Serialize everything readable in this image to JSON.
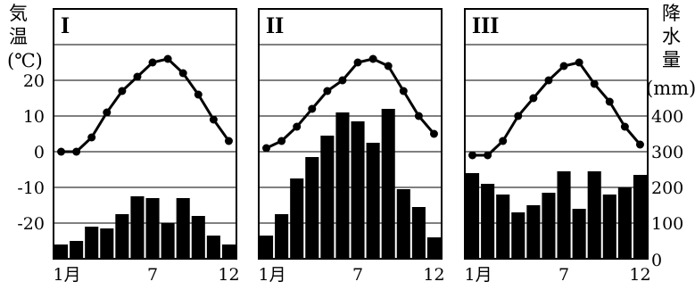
{
  "left_axis": {
    "title": [
      "気",
      "温",
      "(℃)"
    ],
    "ticks": [
      "20",
      "10",
      "0",
      "-10",
      "-20"
    ]
  },
  "right_axis": {
    "title": [
      "降",
      "水",
      "量",
      "(mm)"
    ],
    "ticks": [
      "400",
      "300",
      "200",
      "100",
      "0"
    ]
  },
  "x_ticks": [
    "1月",
    "7",
    "12"
  ],
  "chart_data": [
    {
      "type": "bar+line",
      "panel_label": "I",
      "months": [
        1,
        2,
        3,
        4,
        5,
        6,
        7,
        8,
        9,
        10,
        11,
        12
      ],
      "temperature_c": [
        0,
        0,
        4,
        11,
        17,
        21,
        25,
        26,
        22,
        16,
        9,
        3
      ],
      "precipitation_mm": [
        40,
        50,
        90,
        85,
        125,
        175,
        170,
        100,
        170,
        120,
        65,
        40
      ],
      "temp_ylim": [
        -30,
        30
      ],
      "precip_ylim": [
        0,
        600
      ]
    },
    {
      "type": "bar+line",
      "panel_label": "II",
      "months": [
        1,
        2,
        3,
        4,
        5,
        6,
        7,
        8,
        9,
        10,
        11,
        12
      ],
      "temperature_c": [
        1,
        3,
        7,
        12,
        17,
        20,
        25,
        26,
        24,
        17,
        10,
        5
      ],
      "precipitation_mm": [
        65,
        125,
        225,
        285,
        345,
        410,
        385,
        325,
        420,
        195,
        145,
        60
      ],
      "temp_ylim": [
        -30,
        30
      ],
      "precip_ylim": [
        0,
        600
      ]
    },
    {
      "type": "bar+line",
      "panel_label": "III",
      "months": [
        1,
        2,
        3,
        4,
        5,
        6,
        7,
        8,
        9,
        10,
        11,
        12
      ],
      "temperature_c": [
        -1,
        -1,
        3,
        10,
        15,
        20,
        24,
        25,
        19,
        14,
        7,
        2
      ],
      "precipitation_mm": [
        240,
        210,
        180,
        130,
        150,
        185,
        245,
        140,
        245,
        180,
        200,
        235
      ],
      "temp_ylim": [
        -30,
        30
      ],
      "precip_ylim": [
        0,
        600
      ]
    }
  ]
}
